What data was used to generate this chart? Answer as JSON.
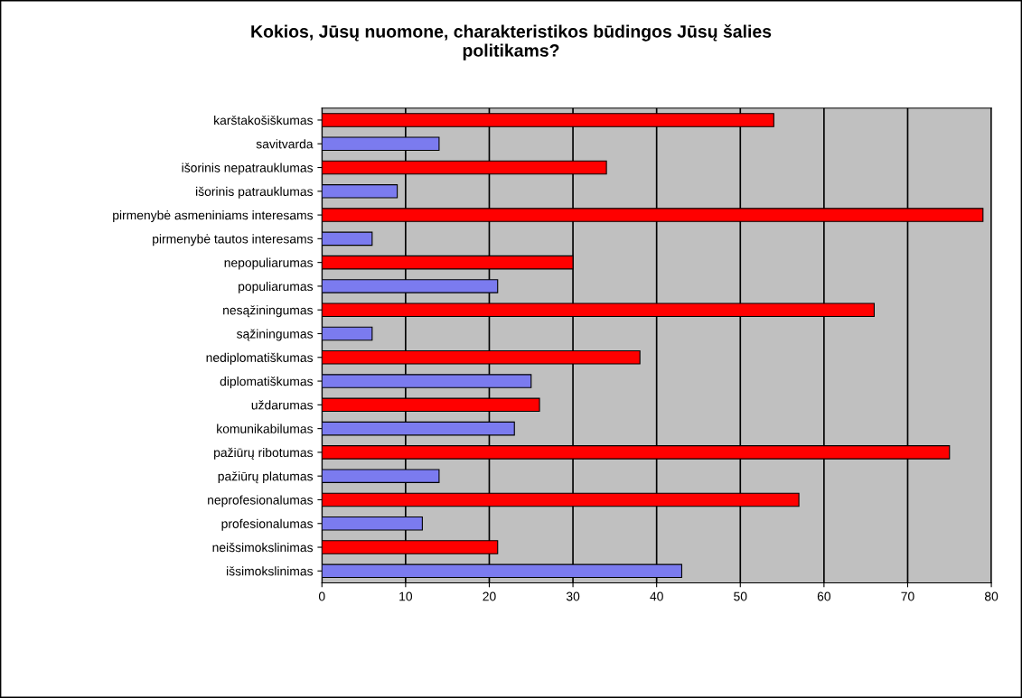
{
  "chart_data": {
    "type": "bar",
    "orientation": "horizontal",
    "title": "Kokios, Jūsų nuomone, charakteristikos būdingos Jūsų šalies\npolitikams?",
    "categories": [
      "karštakošiškumas",
      "savitvarda",
      "išorinis nepatrauklumas",
      "išorinis patrauklumas",
      "pirmenybė asmeniniams interesams",
      "pirmenybė tautos interesams",
      "nepopuliarumas",
      "populiarumas",
      "nesąžiningumas",
      "sąžiningumas",
      "nediplomatiškumas",
      "diplomatiškumas",
      "uždarumas",
      "komunikabilumas",
      "pažiūrų ribotumas",
      "pažiūrų platumas",
      "neprofesionalumas",
      "profesionalumas",
      "neišsimokslinimas",
      "išsimokslinimas"
    ],
    "values": [
      54,
      14,
      34,
      9,
      79,
      6,
      30,
      21,
      66,
      6,
      38,
      25,
      26,
      23,
      75,
      14,
      57,
      12,
      21,
      43
    ],
    "colors": [
      "#ff0000",
      "#7b7bef",
      "#ff0000",
      "#7b7bef",
      "#ff0000",
      "#7b7bef",
      "#ff0000",
      "#7b7bef",
      "#ff0000",
      "#7b7bef",
      "#ff0000",
      "#7b7bef",
      "#ff0000",
      "#7b7bef",
      "#ff0000",
      "#7b7bef",
      "#ff0000",
      "#7b7bef",
      "#ff0000",
      "#7b7bef"
    ],
    "xlim": [
      0,
      80
    ],
    "xticks": [
      0,
      10,
      20,
      30,
      40,
      50,
      60,
      70,
      80
    ],
    "grid": "x",
    "legend": false
  }
}
